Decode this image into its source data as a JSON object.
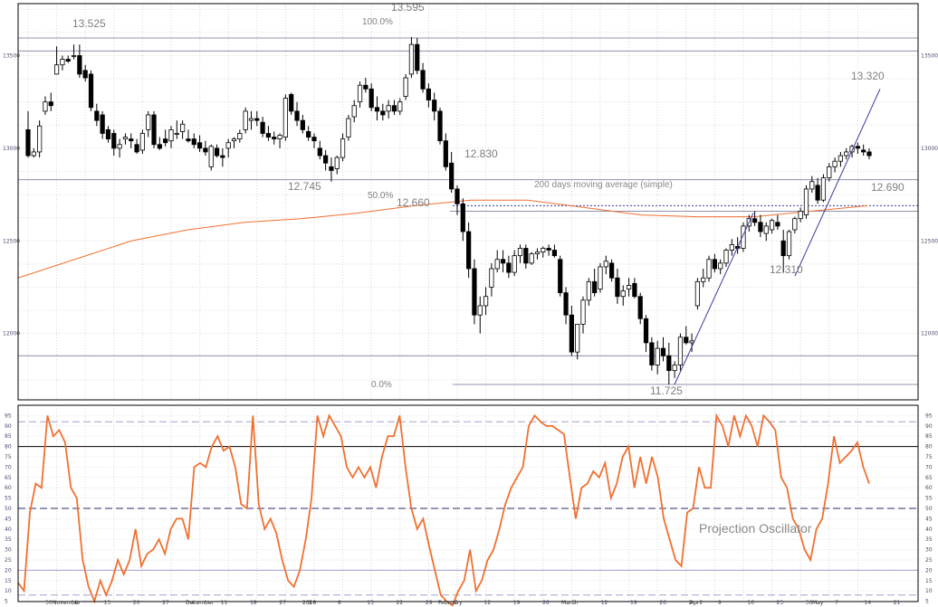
{
  "chart_data": [
    {
      "type": "candlestick",
      "ylim": [
        11725,
        13750
      ],
      "ylabel_ticks": [
        "12000",
        "12500",
        "13000",
        "13500"
      ],
      "grid": true,
      "colors": {
        "bull": "#ffffff",
        "bear": "#000000",
        "ma": "#f07030",
        "level": "#9090b0",
        "trend": "#3a3aa0"
      },
      "x_axis": {
        "day_labels": [
          "30",
          "6",
          "13",
          "20",
          "27",
          "4",
          "11",
          "18",
          "27",
          "2",
          "8",
          "15",
          "22",
          "29",
          "5",
          "12",
          "19",
          "26",
          "5",
          "12",
          "19",
          "26",
          "2",
          "9",
          "16",
          "23",
          "30",
          "7",
          "14",
          "21"
        ],
        "month_labels": [
          "November",
          "December",
          "2018",
          "February",
          "March",
          "April",
          "May"
        ]
      },
      "candles": [
        [
          13100,
          13200,
          12950,
          12960
        ],
        [
          12960,
          13000,
          12950,
          12980
        ],
        [
          12980,
          13150,
          12950,
          13120
        ],
        [
          13200,
          13280,
          13180,
          13250
        ],
        [
          13250,
          13300,
          13200,
          13230
        ],
        [
          13400,
          13550,
          13400,
          13450
        ],
        [
          13450,
          13500,
          13420,
          13480
        ],
        [
          13480,
          13500,
          13460,
          13470
        ],
        [
          13500,
          13560,
          13480,
          13500
        ],
        [
          13500,
          13560,
          13380,
          13400
        ],
        [
          13420,
          13450,
          13360,
          13380
        ],
        [
          13400,
          13420,
          13200,
          13220
        ],
        [
          13200,
          13240,
          13120,
          13150
        ],
        [
          13180,
          13200,
          13050,
          13080
        ],
        [
          13100,
          13120,
          13030,
          13050
        ],
        [
          13080,
          13100,
          12960,
          13000
        ],
        [
          13000,
          13050,
          12950,
          13020
        ],
        [
          13050,
          13080,
          13020,
          13060
        ],
        [
          13050,
          13080,
          13000,
          13040
        ],
        [
          13020,
          13050,
          12970,
          12980
        ],
        [
          12990,
          13100,
          12970,
          13080
        ],
        [
          13100,
          13200,
          13060,
          13180
        ],
        [
          13180,
          13200,
          13000,
          13020
        ],
        [
          13020,
          13060,
          12990,
          13000
        ],
        [
          13050,
          13100,
          13010,
          13030
        ],
        [
          13040,
          13120,
          13000,
          13100
        ],
        [
          13080,
          13150,
          13050,
          13080
        ],
        [
          13090,
          13150,
          13050,
          13130
        ],
        [
          13050,
          13100,
          13030,
          13040
        ],
        [
          13050,
          13080,
          13000,
          13020
        ],
        [
          13030,
          13070,
          12980,
          13000
        ],
        [
          13000,
          13040,
          12960,
          12980
        ],
        [
          12900,
          13020,
          12880,
          13010
        ],
        [
          13000,
          13020,
          12950,
          12960
        ],
        [
          12960,
          13000,
          12900,
          12950
        ],
        [
          13000,
          13050,
          12950,
          13030
        ],
        [
          13040,
          13060,
          13000,
          13050
        ],
        [
          13050,
          13100,
          13030,
          13080
        ],
        [
          13100,
          13220,
          13080,
          13200
        ],
        [
          13150,
          13200,
          13100,
          13160
        ],
        [
          13160,
          13200,
          13120,
          13150
        ],
        [
          13140,
          13170,
          13060,
          13080
        ],
        [
          13080,
          13120,
          13040,
          13060
        ],
        [
          13060,
          13090,
          13020,
          13050
        ],
        [
          13050,
          13080,
          13000,
          13070
        ],
        [
          13060,
          13290,
          13040,
          13270
        ],
        [
          13290,
          13300,
          13180,
          13200
        ],
        [
          13200,
          13250,
          13120,
          13150
        ],
        [
          13150,
          13180,
          13080,
          13100
        ],
        [
          13090,
          13120,
          13040,
          13060
        ],
        [
          13060,
          13080,
          13000,
          13040
        ],
        [
          13000,
          13040,
          12940,
          12960
        ],
        [
          12960,
          12990,
          12880,
          12920
        ],
        [
          12900,
          12950,
          12820,
          12880
        ],
        [
          12890,
          12960,
          12860,
          12950
        ],
        [
          12950,
          13080,
          12930,
          13050
        ],
        [
          13060,
          13180,
          13040,
          13160
        ],
        [
          13170,
          13260,
          13140,
          13230
        ],
        [
          13250,
          13360,
          13220,
          13340
        ],
        [
          13340,
          13380,
          13300,
          13320
        ],
        [
          13320,
          13350,
          13200,
          13220
        ],
        [
          13220,
          13280,
          13150,
          13200
        ],
        [
          13200,
          13240,
          13150,
          13180
        ],
        [
          13200,
          13260,
          13160,
          13230
        ],
        [
          13230,
          13260,
          13180,
          13200
        ],
        [
          13200,
          13270,
          13180,
          13250
        ],
        [
          13280,
          13400,
          13260,
          13380
        ],
        [
          13400,
          13600,
          13380,
          13560
        ],
        [
          13560,
          13595,
          13400,
          13420
        ],
        [
          13420,
          13460,
          13300,
          13320
        ],
        [
          13320,
          13350,
          13220,
          13260
        ],
        [
          13260,
          13300,
          13150,
          13200
        ],
        [
          13200,
          13220,
          13020,
          13040
        ],
        [
          13040,
          13080,
          12880,
          12900
        ],
        [
          12920,
          12980,
          12760,
          12780
        ],
        [
          12780,
          12800,
          12640,
          12700
        ],
        [
          12700,
          12730,
          12500,
          12550
        ],
        [
          12550,
          12600,
          12300,
          12350
        ],
        [
          12350,
          12400,
          12050,
          12100
        ],
        [
          12100,
          12200,
          12000,
          12150
        ],
        [
          12150,
          12250,
          12100,
          12200
        ],
        [
          12250,
          12380,
          12200,
          12350
        ],
        [
          12350,
          12450,
          12330,
          12400
        ],
        [
          12400,
          12450,
          12330,
          12380
        ],
        [
          12380,
          12420,
          12300,
          12330
        ],
        [
          12330,
          12450,
          12310,
          12420
        ],
        [
          12420,
          12480,
          12380,
          12460
        ],
        [
          12460,
          12480,
          12350,
          12380
        ],
        [
          12380,
          12440,
          12370,
          12430
        ],
        [
          12430,
          12460,
          12400,
          12440
        ],
        [
          12440,
          12470,
          12410,
          12460
        ],
        [
          12460,
          12480,
          12420,
          12450
        ],
        [
          12450,
          12480,
          12410,
          12420
        ],
        [
          12400,
          12420,
          12200,
          12220
        ],
        [
          12220,
          12250,
          12050,
          12100
        ],
        [
          12100,
          12150,
          11880,
          11900
        ],
        [
          11900,
          12050,
          11860,
          12050
        ],
        [
          12050,
          12200,
          12000,
          12180
        ],
        [
          12180,
          12300,
          12150,
          12280
        ],
        [
          12280,
          12350,
          12200,
          12220
        ],
        [
          12240,
          12380,
          12220,
          12360
        ],
        [
          12360,
          12420,
          12320,
          12390
        ],
        [
          12380,
          12400,
          12280,
          12300
        ],
        [
          12300,
          12350,
          12160,
          12200
        ],
        [
          12200,
          12260,
          12150,
          12230
        ],
        [
          12240,
          12300,
          12200,
          12260
        ],
        [
          12270,
          12300,
          12190,
          12200
        ],
        [
          12200,
          12220,
          12050,
          12080
        ],
        [
          12080,
          12100,
          11900,
          11950
        ],
        [
          11950,
          11980,
          11800,
          11830
        ],
        [
          11830,
          11960,
          11780,
          11920
        ],
        [
          11920,
          11980,
          11850,
          11880
        ],
        [
          11880,
          11950,
          11725,
          11800
        ],
        [
          11800,
          11850,
          11760,
          11830
        ],
        [
          11830,
          12000,
          11800,
          11980
        ],
        [
          11980,
          12040,
          11940,
          11950
        ],
        [
          11950,
          12000,
          11900,
          11960
        ],
        [
          12150,
          12300,
          12130,
          12280
        ],
        [
          12280,
          12350,
          12250,
          12300
        ],
        [
          12300,
          12420,
          12280,
          12400
        ],
        [
          12400,
          12430,
          12330,
          12350
        ],
        [
          12350,
          12400,
          12320,
          12380
        ],
        [
          12380,
          12460,
          12360,
          12450
        ],
        [
          12450,
          12510,
          12420,
          12480
        ],
        [
          12470,
          12520,
          12430,
          12460
        ],
        [
          12460,
          12600,
          12440,
          12580
        ],
        [
          12580,
          12640,
          12550,
          12620
        ],
        [
          12620,
          12660,
          12580,
          12600
        ],
        [
          12600,
          12640,
          12520,
          12550
        ],
        [
          12540,
          12600,
          12500,
          12580
        ],
        [
          12560,
          12620,
          12540,
          12610
        ],
        [
          12600,
          12640,
          12560,
          12580
        ],
        [
          12500,
          12560,
          12330,
          12420
        ],
        [
          12420,
          12560,
          12400,
          12550
        ],
        [
          12560,
          12630,
          12540,
          12620
        ],
        [
          12620,
          12680,
          12600,
          12660
        ],
        [
          12640,
          12800,
          12620,
          12780
        ],
        [
          12780,
          12850,
          12760,
          12820
        ],
        [
          12800,
          12840,
          12700,
          12720
        ],
        [
          12720,
          12860,
          12710,
          12840
        ],
        [
          12840,
          12920,
          12820,
          12900
        ],
        [
          12900,
          12950,
          12870,
          12930
        ],
        [
          12930,
          12980,
          12900,
          12960
        ],
        [
          12960,
          13000,
          12940,
          12980
        ],
        [
          12980,
          13020,
          12950,
          13010
        ],
        [
          13010,
          13030,
          12970,
          13000
        ],
        [
          12990,
          13020,
          12960,
          12980
        ],
        [
          12980,
          13000,
          12940,
          12960
        ]
      ],
      "ma_values": [
        12300,
        12400,
        12500,
        12560,
        12600,
        12620,
        12650,
        12690,
        12720,
        12720,
        12680,
        12640,
        12630,
        12630,
        12660,
        12690
      ],
      "price_levels": [
        {
          "price": 13525,
          "label": "13.525"
        },
        {
          "price": 13595,
          "label": "13.595",
          "retrace": "100.0%"
        },
        {
          "price": 12745,
          "label": "12.745"
        },
        {
          "price": 12830,
          "label": "12.830"
        },
        {
          "price": 12660,
          "label": "12.660",
          "retrace": "50.0%"
        },
        {
          "price": 11725,
          "label": "11.725",
          "retrace": "0.0%"
        },
        {
          "price": 12310,
          "label": "12.310"
        },
        {
          "price": 13320,
          "label": "13.320"
        },
        {
          "price": 12690,
          "label": "12.690"
        }
      ],
      "annotations": [
        "200 days moving average (simple)"
      ]
    },
    {
      "type": "line",
      "title": "Projection Oscillator",
      "ylim": [
        0,
        100
      ],
      "y_ticks": [
        "5",
        "10",
        "15",
        "20",
        "25",
        "30",
        "35",
        "40",
        "45",
        "50",
        "55",
        "60",
        "65",
        "70",
        "75",
        "80",
        "85",
        "90",
        "95"
      ],
      "reference_lines": [
        8,
        20,
        50,
        80,
        92
      ],
      "values": [
        14,
        10,
        48,
        62,
        60,
        95,
        85,
        88,
        82,
        60,
        55,
        25,
        12,
        5,
        15,
        8,
        15,
        25,
        18,
        25,
        40,
        22,
        28,
        30,
        35,
        28,
        40,
        45,
        45,
        35,
        70,
        72,
        70,
        80,
        85,
        78,
        80,
        70,
        52,
        50,
        95,
        52,
        40,
        45,
        38,
        25,
        15,
        12,
        20,
        35,
        55,
        95,
        85,
        95,
        90,
        85,
        70,
        65,
        70,
        65,
        70,
        60,
        75,
        85,
        85,
        95,
        70,
        50,
        40,
        45,
        32,
        20,
        8,
        5,
        3,
        10,
        15,
        30,
        10,
        15,
        25,
        30,
        40,
        52,
        60,
        65,
        70,
        90,
        95,
        92,
        90,
        90,
        88,
        86,
        65,
        45,
        60,
        62,
        68,
        65,
        72,
        55,
        62,
        75,
        80,
        60,
        75,
        62,
        75,
        65,
        45,
        35,
        25,
        22,
        48,
        50,
        70,
        60,
        60,
        95,
        90,
        80,
        95,
        85,
        95,
        90,
        80,
        95,
        92,
        88,
        65,
        60,
        45,
        40,
        30,
        25,
        40,
        45,
        62,
        85,
        72,
        75,
        78,
        82,
        70,
        62
      ],
      "series_color": "#f07030"
    }
  ]
}
